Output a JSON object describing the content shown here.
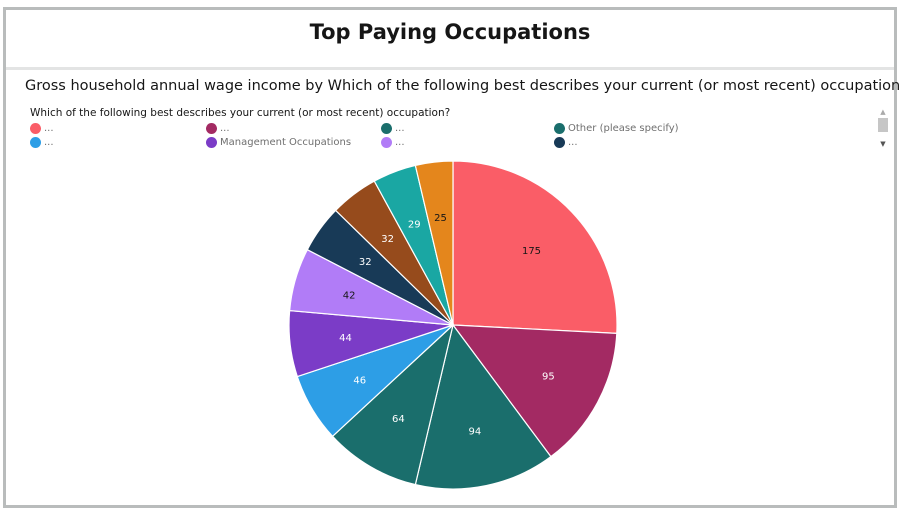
{
  "title": "Top Paying Occupations",
  "subtitle": "Gross household annual wage income by Which of the following best describes your current (or most recent) occupation?",
  "legend": {
    "title": "Which of the following best describes your current (or most recent) occupation?",
    "items": [
      {
        "label": "...",
        "color": "#fa5d67"
      },
      {
        "label": "...",
        "color": "#a32a63"
      },
      {
        "label": "...",
        "color": "#1a6e6c"
      },
      {
        "label": "Other (please specify)",
        "color": "#1a6e6c"
      },
      {
        "label": "...",
        "color": "#2d9ee6"
      },
      {
        "label": "Management Occupations",
        "color": "#7b3cc7"
      },
      {
        "label": "...",
        "color": "#b17cf7"
      },
      {
        "label": "...",
        "color": "#183a57"
      }
    ]
  },
  "chart_data": {
    "type": "pie",
    "title": "Top Paying Occupations",
    "values": [
      175,
      95,
      94,
      64,
      46,
      44,
      42,
      32,
      32,
      29,
      25
    ],
    "colors": [
      "#fa5d67",
      "#a32a63",
      "#1a6e6c",
      "#1a6e6c",
      "#2d9ee6",
      "#7b3cc7",
      "#b17cf7",
      "#183a57",
      "#964b1c",
      "#1aa7a3",
      "#e4861c"
    ],
    "label_colors": [
      "#161616",
      "#ffffff",
      "#ffffff",
      "#ffffff",
      "#ffffff",
      "#ffffff",
      "#161616",
      "#ffffff",
      "#ffffff",
      "#ffffff",
      "#161616"
    ]
  }
}
